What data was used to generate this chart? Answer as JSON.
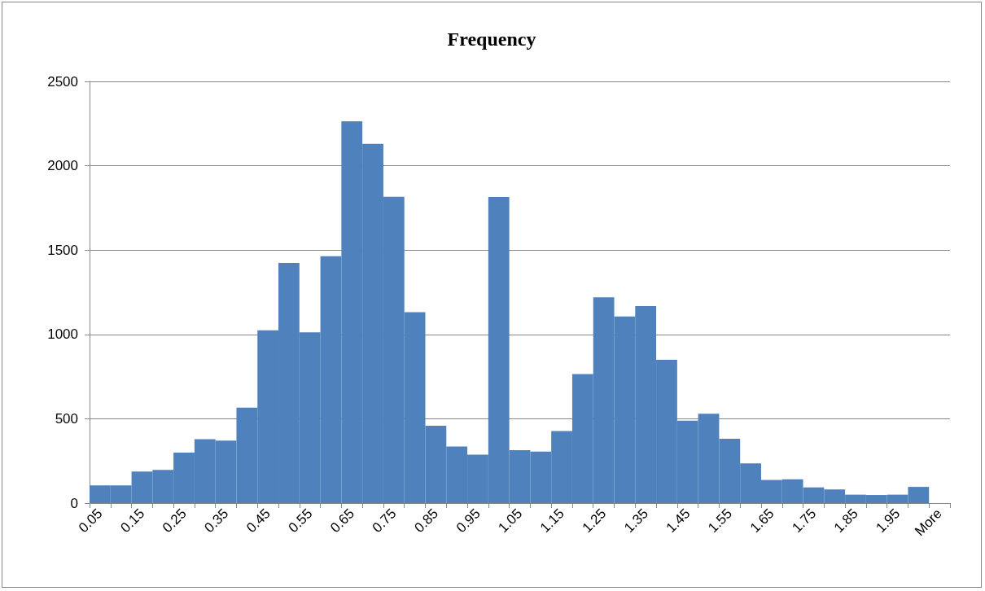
{
  "chart_data": {
    "type": "bar",
    "title": "Frequency",
    "categories": [
      "0.05",
      null,
      "0.15",
      null,
      "0.25",
      null,
      "0.35",
      null,
      "0.45",
      null,
      "0.55",
      null,
      "0.65",
      null,
      "0.75",
      null,
      "0.85",
      null,
      "0.95",
      null,
      "1.05",
      null,
      "1.15",
      null,
      "1.25",
      null,
      "1.35",
      null,
      "1.45",
      null,
      "1.55",
      null,
      "1.65",
      null,
      "1.75",
      null,
      "1.85",
      null,
      "1.95",
      null,
      "More"
    ],
    "values": [
      105,
      105,
      187,
      197,
      299,
      379,
      371,
      566,
      1024,
      1424,
      1012,
      1463,
      2263,
      2129,
      1816,
      1132,
      458,
      335,
      287,
      1815,
      314,
      305,
      427,
      765,
      1220,
      1107,
      1168,
      849,
      489,
      530,
      381,
      235,
      137,
      141,
      93,
      81,
      50,
      48,
      50,
      96,
      0
    ],
    "color": "#4f81bd",
    "ylim": [
      0,
      2500
    ],
    "yticks": [
      0,
      500,
      1000,
      1500,
      2000,
      2500
    ],
    "grid": "y"
  }
}
